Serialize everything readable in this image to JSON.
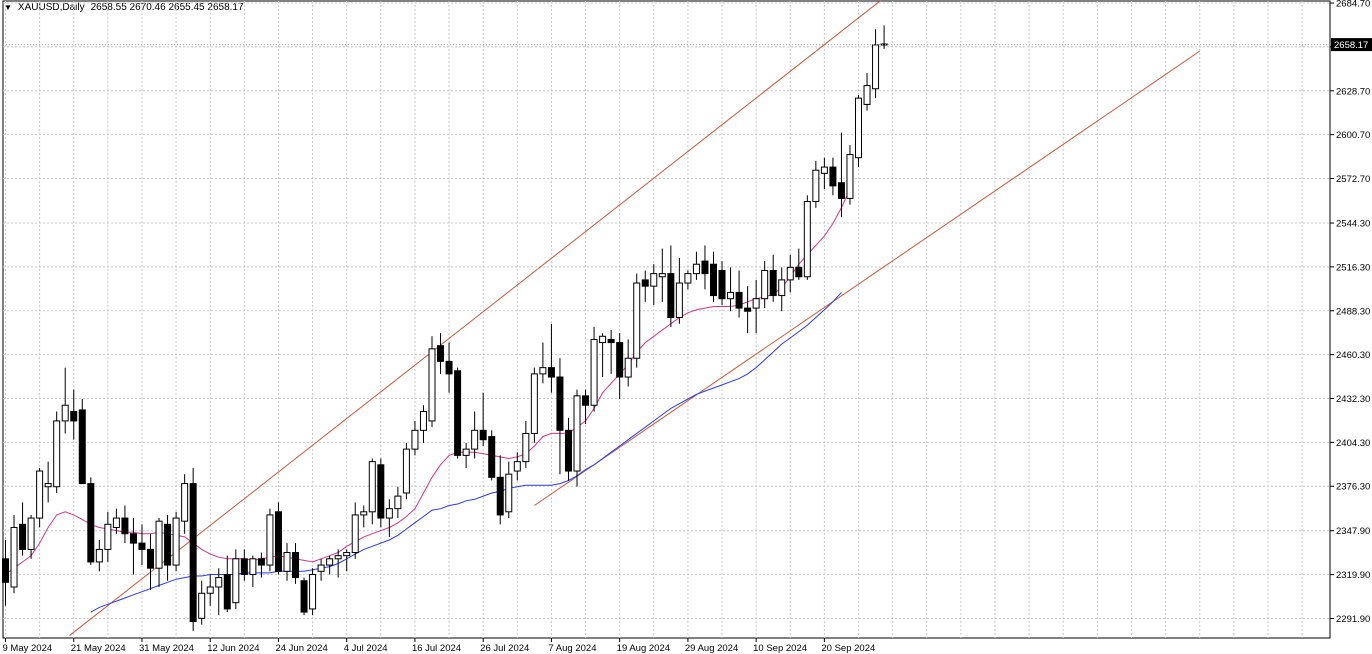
{
  "header": {
    "symbol": "XAUUSD,Daily",
    "ohlc": "2658.55 2670.46 2655.45 2658.17",
    "menu_icon": "triangle-down-icon"
  },
  "price_tag": "2658.17",
  "chart_data": {
    "type": "candlestick",
    "symbol": "XAUUSD",
    "timeframe": "Daily",
    "ylim": [
      2282,
      2686
    ],
    "grid": true,
    "y_ticks": [
      "2684.70",
      "2656.70",
      "2628.70",
      "2600.70",
      "2572.70",
      "2544.30",
      "2516.30",
      "2488.30",
      "2460.30",
      "2432.30",
      "2404.30",
      "2376.30",
      "2347.90",
      "2319.90",
      "2291.90"
    ],
    "x_ticks": [
      {
        "label": "9 May 2024",
        "index": 0
      },
      {
        "label": "21 May 2024",
        "index": 8
      },
      {
        "label": "31 May 2024",
        "index": 16
      },
      {
        "label": "12 Jun 2024",
        "index": 24
      },
      {
        "label": "24 Jun 2024",
        "index": 32
      },
      {
        "label": "4 Jul 2024",
        "index": 40
      },
      {
        "label": "16 Jul 2024",
        "index": 48
      },
      {
        "label": "26 Jul 2024",
        "index": 56
      },
      {
        "label": "7 Aug 2024",
        "index": 64
      },
      {
        "label": "19 Aug 2024",
        "index": 72
      },
      {
        "label": "29 Aug 2024",
        "index": 80
      },
      {
        "label": "10 Sep 2024",
        "index": 88
      },
      {
        "label": "20 Sep 2024",
        "index": 96
      }
    ],
    "candles": [
      [
        2330,
        2342,
        2300,
        2315
      ],
      [
        2312,
        2358,
        2308,
        2350
      ],
      [
        2352,
        2366,
        2332,
        2336
      ],
      [
        2336,
        2358,
        2330,
        2356
      ],
      [
        2356,
        2388,
        2350,
        2386
      ],
      [
        2376,
        2392,
        2366,
        2378
      ],
      [
        2376,
        2424,
        2372,
        2418
      ],
      [
        2418,
        2452,
        2410,
        2428
      ],
      [
        2424,
        2438,
        2406,
        2418
      ],
      [
        2425,
        2432,
        2378,
        2378
      ],
      [
        2378,
        2382,
        2326,
        2328
      ],
      [
        2328,
        2342,
        2322,
        2336
      ],
      [
        2336,
        2360,
        2328,
        2352
      ],
      [
        2350,
        2362,
        2346,
        2356
      ],
      [
        2356,
        2364,
        2340,
        2346
      ],
      [
        2346,
        2356,
        2320,
        2340
      ],
      [
        2340,
        2352,
        2326,
        2336
      ],
      [
        2336,
        2346,
        2310,
        2324
      ],
      [
        2324,
        2356,
        2312,
        2354
      ],
      [
        2352,
        2358,
        2316,
        2326
      ],
      [
        2326,
        2360,
        2322,
        2356
      ],
      [
        2354,
        2384,
        2346,
        2378
      ],
      [
        2378,
        2388,
        2284,
        2290
      ],
      [
        2292,
        2316,
        2288,
        2308
      ],
      [
        2308,
        2320,
        2300,
        2312
      ],
      [
        2312,
        2324,
        2294,
        2318
      ],
      [
        2320,
        2332,
        2296,
        2298
      ],
      [
        2302,
        2336,
        2298,
        2330
      ],
      [
        2330,
        2336,
        2316,
        2320
      ],
      [
        2320,
        2332,
        2312,
        2330
      ],
      [
        2330,
        2334,
        2318,
        2326
      ],
      [
        2326,
        2362,
        2322,
        2358
      ],
      [
        2360,
        2366,
        2320,
        2322
      ],
      [
        2322,
        2340,
        2316,
        2334
      ],
      [
        2334,
        2340,
        2314,
        2318
      ],
      [
        2316,
        2318,
        2294,
        2296
      ],
      [
        2298,
        2324,
        2294,
        2320
      ],
      [
        2322,
        2330,
        2316,
        2326
      ],
      [
        2326,
        2332,
        2320,
        2330
      ],
      [
        2330,
        2336,
        2318,
        2332
      ],
      [
        2332,
        2336,
        2322,
        2334
      ],
      [
        2334,
        2366,
        2330,
        2358
      ],
      [
        2358,
        2364,
        2350,
        2360
      ],
      [
        2360,
        2394,
        2352,
        2392
      ],
      [
        2390,
        2394,
        2350,
        2356
      ],
      [
        2356,
        2368,
        2344,
        2362
      ],
      [
        2362,
        2376,
        2356,
        2370
      ],
      [
        2372,
        2404,
        2368,
        2400
      ],
      [
        2400,
        2418,
        2396,
        2412
      ],
      [
        2412,
        2428,
        2404,
        2424
      ],
      [
        2418,
        2472,
        2414,
        2464
      ],
      [
        2466,
        2474,
        2448,
        2456
      ],
      [
        2456,
        2468,
        2436,
        2448
      ],
      [
        2450,
        2452,
        2394,
        2396
      ],
      [
        2396,
        2404,
        2388,
        2400
      ],
      [
        2400,
        2424,
        2394,
        2412
      ],
      [
        2412,
        2436,
        2402,
        2406
      ],
      [
        2408,
        2412,
        2380,
        2382
      ],
      [
        2382,
        2396,
        2352,
        2358
      ],
      [
        2360,
        2392,
        2356,
        2384
      ],
      [
        2386,
        2398,
        2380,
        2392
      ],
      [
        2392,
        2418,
        2388,
        2410
      ],
      [
        2410,
        2452,
        2404,
        2448
      ],
      [
        2448,
        2468,
        2442,
        2452
      ],
      [
        2452,
        2480,
        2436,
        2446
      ],
      [
        2446,
        2458,
        2384,
        2412
      ],
      [
        2412,
        2420,
        2380,
        2386
      ],
      [
        2386,
        2438,
        2376,
        2434
      ],
      [
        2434,
        2438,
        2416,
        2428
      ],
      [
        2428,
        2478,
        2424,
        2470
      ],
      [
        2468,
        2474,
        2446,
        2472
      ],
      [
        2470,
        2476,
        2448,
        2468
      ],
      [
        2468,
        2474,
        2432,
        2446
      ],
      [
        2446,
        2470,
        2440,
        2458
      ],
      [
        2458,
        2512,
        2452,
        2506
      ],
      [
        2508,
        2514,
        2494,
        2504
      ],
      [
        2504,
        2518,
        2492,
        2512
      ],
      [
        2510,
        2528,
        2494,
        2512
      ],
      [
        2512,
        2530,
        2478,
        2484
      ],
      [
        2484,
        2522,
        2480,
        2506
      ],
      [
        2506,
        2514,
        2502,
        2512
      ],
      [
        2512,
        2526,
        2508,
        2518
      ],
      [
        2520,
        2530,
        2502,
        2512
      ],
      [
        2518,
        2526,
        2494,
        2498
      ],
      [
        2514,
        2520,
        2492,
        2496
      ],
      [
        2496,
        2516,
        2488,
        2500
      ],
      [
        2500,
        2514,
        2484,
        2490
      ],
      [
        2490,
        2504,
        2474,
        2488
      ],
      [
        2490,
        2508,
        2474,
        2496
      ],
      [
        2496,
        2520,
        2490,
        2514
      ],
      [
        2514,
        2524,
        2494,
        2498
      ],
      [
        2498,
        2516,
        2488,
        2508
      ],
      [
        2508,
        2524,
        2500,
        2516
      ],
      [
        2516,
        2528,
        2508,
        2510
      ],
      [
        2510,
        2562,
        2508,
        2558
      ],
      [
        2558,
        2584,
        2554,
        2578
      ],
      [
        2576,
        2586,
        2566,
        2580
      ],
      [
        2580,
        2586,
        2562,
        2568
      ],
      [
        2570,
        2602,
        2548,
        2560
      ],
      [
        2560,
        2594,
        2556,
        2588
      ],
      [
        2586,
        2626,
        2580,
        2624
      ],
      [
        2620,
        2640,
        2616,
        2632
      ],
      [
        2630,
        2668,
        2624,
        2658
      ],
      [
        2658.55,
        2670.46,
        2655.45,
        2658.17
      ]
    ],
    "series": [
      {
        "name": "",
        "color": "#d4368f",
        "values": [
          2320,
          2324,
          2328,
          2332,
          2340,
          2350,
          2358,
          2360,
          2358,
          2355,
          2352,
          2350,
          2349,
          2348,
          2347,
          2347,
          2346,
          2346,
          2347,
          2346,
          2345,
          2344,
          2340,
          2336,
          2333,
          2331,
          2330,
          2330,
          2330,
          2329,
          2330,
          2331,
          2332,
          2331,
          2330,
          2329,
          2328,
          2330,
          2332,
          2334,
          2338,
          2341,
          2344,
          2346,
          2348,
          2350,
          2353,
          2357,
          2362,
          2372,
          2382,
          2390,
          2396,
          2398,
          2398,
          2398,
          2397,
          2396,
          2395,
          2394,
          2395,
          2397,
          2402,
          2408,
          2410,
          2410,
          2410,
          2414,
          2418,
          2426,
          2436,
          2442,
          2448,
          2454,
          2462,
          2468,
          2472,
          2476,
          2480,
          2484,
          2487,
          2489,
          2490,
          2491,
          2491,
          2491,
          2492,
          2494,
          2496,
          2497,
          2499,
          2503,
          2510,
          2518,
          2524,
          2530,
          2536,
          2544,
          2554,
          2566
        ]
      },
      {
        "name": "",
        "color": "#2b3bf0",
        "values": [
          null,
          null,
          null,
          null,
          null,
          null,
          null,
          null,
          null,
          null,
          2296,
          2299,
          2301,
          2303,
          2305,
          2307,
          2309,
          2311,
          2313,
          2315,
          2317,
          2318,
          2319,
          2319,
          2320,
          2320,
          2320,
          2320,
          2321,
          2321,
          2321,
          2321,
          2322,
          2322,
          2322,
          2322,
          2323,
          2324,
          2325,
          2327,
          2330,
          2333,
          2336,
          2338,
          2340,
          2342,
          2345,
          2349,
          2353,
          2357,
          2361,
          2362,
          2364,
          2365,
          2367,
          2368,
          2370,
          2372,
          2373,
          2375,
          2376,
          2377,
          2377,
          2377,
          2377,
          2378,
          2380,
          2383,
          2387,
          2390,
          2394,
          2398,
          2402,
          2406,
          2410,
          2414,
          2418,
          2422,
          2426,
          2429,
          2432,
          2435,
          2437,
          2439,
          2441,
          2443,
          2445,
          2448,
          2452,
          2457,
          2462,
          2467,
          2471,
          2475,
          2479,
          2484,
          2489,
          2494,
          2500
        ]
      }
    ],
    "trendlines": [
      {
        "from": [
          7.5,
          2281
        ],
        "to": [
          103,
          2688
        ],
        "color": "#c85a3c"
      },
      {
        "from": [
          62,
          2364
        ],
        "to": [
          140,
          2654
        ],
        "color": "#c85a3c"
      }
    ]
  }
}
